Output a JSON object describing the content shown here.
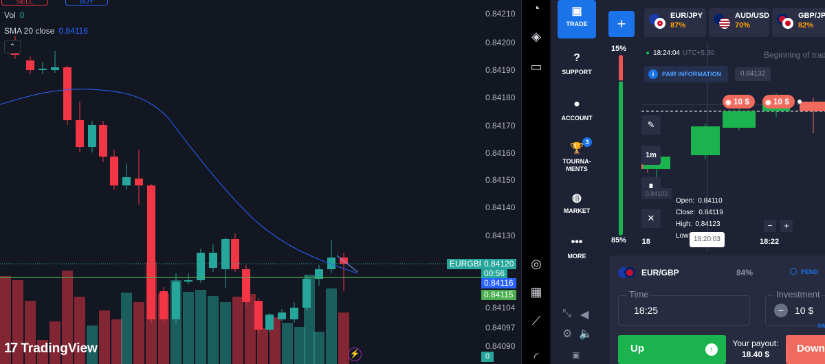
{
  "tradingview": {
    "top_buttons": {
      "sell": "SELL",
      "buy": "BUY"
    },
    "indicators": {
      "vol_label": "Vol",
      "vol_value": "0",
      "sma_label": "SMA 20 close",
      "sma_value": "0.84116"
    },
    "collapse_icon": "chevron-up-icon",
    "brand": "TradingView",
    "price_axis": [
      "0.84210",
      "0.84200",
      "0.84190",
      "0.84180",
      "0.84170",
      "0.84160",
      "0.84150",
      "0.84140",
      "0.84130",
      "0.84104",
      "0.84097",
      "0.84090"
    ],
    "symbol_tag": "EURGBP",
    "last_price": "0.84120",
    "countdown": "00:56",
    "sma_tag": "0.84116",
    "line_tag": "0.84115",
    "volume_tag": "0",
    "colors": {
      "up": "#26a69a",
      "down": "#f23645",
      "sma": "#2962ff",
      "line": "#4caf50"
    }
  },
  "toolbar_icons": [
    "alarm-clock-icon",
    "layers-icon",
    "chat-icon",
    "gauge-icon",
    "calendar-icon",
    "chart-indicator-icon",
    "wifi-icon"
  ],
  "nav": {
    "items": [
      {
        "label": "TRADE",
        "icon": "chart-icon"
      },
      {
        "label": "SUPPORT",
        "icon": "question-icon"
      },
      {
        "label": "ACCOUNT",
        "icon": "user-icon"
      },
      {
        "label": "TOURNA-\nMENTS",
        "icon": "trophy-icon",
        "badge": "3"
      },
      {
        "label": "MARKET",
        "icon": "coins-icon"
      },
      {
        "label": "MORE",
        "icon": "dots-icon"
      }
    ]
  },
  "assets": [
    {
      "name": "EUR/JPY",
      "pct": "87%"
    },
    {
      "name": "AUD/USD",
      "pct": "70%"
    },
    {
      "name": "GBP/JPY",
      "pct": "82%"
    }
  ],
  "sentiment": {
    "down": "15%",
    "up": "85%",
    "up_fraction": 0.85
  },
  "mini_chart": {
    "time": "18:24:04",
    "tz": "UTC+5:30",
    "beginning": "Beginning of trade",
    "pair_info": "PAIR INFORMATION",
    "current_price": "0.84132",
    "deals": [
      "10 $",
      "10 $"
    ],
    "timeframe": "1m",
    "low_price": "0.84102",
    "ohlc": {
      "open_label": "Open:",
      "open": "0.84110",
      "close_label": "Close:",
      "close": "0.84119",
      "high_label": "High:",
      "high": "0.84123",
      "low_label": "Low:"
    },
    "hover_time": "18:20:03",
    "x_labels": [
      ":18",
      "18:22"
    ],
    "zoom_out": "−",
    "zoom_in": "+"
  },
  "panel": {
    "pair": "EUR/GBP",
    "pct": "84%",
    "pending": "PEND",
    "time_label": "Time",
    "time_value": "18:25",
    "investment_label": "Investment",
    "investment_value": "10 $",
    "sw": "SW",
    "up_label": "Up",
    "payout_label": "Your payout:",
    "payout_value": "18.40 $",
    "down_label": "Down"
  }
}
